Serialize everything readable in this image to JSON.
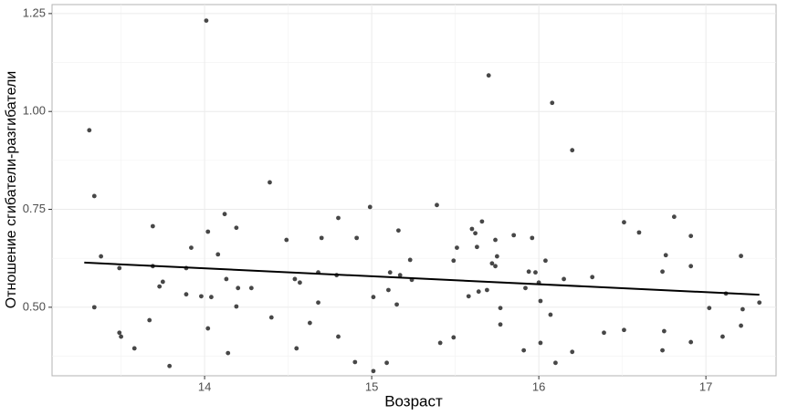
{
  "chart_data": {
    "type": "scatter",
    "xlabel": "Возраст",
    "ylabel": "Отношение сгибатели-разгибатели",
    "color": "#333333",
    "grid": true,
    "minor_grid": true,
    "xlim": [
      13.087,
      17.42
    ],
    "ylim": [
      0.325,
      1.273
    ],
    "xticks": [
      14,
      15,
      16,
      17
    ],
    "yticks": [
      {
        "value": 0.5,
        "label": "0.50"
      },
      {
        "value": 0.75,
        "label": "0.75"
      },
      {
        "value": 1.0,
        "label": "1.00"
      },
      {
        "value": 1.25,
        "label": "1.25"
      }
    ],
    "x": [
      13.31,
      13.34,
      13.34,
      13.38,
      13.49,
      13.49,
      13.5,
      13.58,
      13.67,
      13.69,
      13.69,
      13.73,
      13.75,
      13.79,
      13.89,
      13.89,
      13.92,
      13.98,
      14.01,
      14.02,
      14.02,
      14.04,
      14.08,
      14.12,
      14.13,
      14.14,
      14.19,
      14.19,
      14.2,
      14.28,
      14.39,
      14.4,
      14.49,
      14.54,
      14.55,
      14.57,
      14.63,
      14.68,
      14.68,
      14.7,
      14.79,
      14.8,
      14.8,
      14.9,
      14.91,
      14.99,
      15.01,
      15.01,
      15.09,
      15.1,
      15.11,
      15.15,
      15.16,
      15.17,
      15.23,
      15.24,
      15.39,
      15.41,
      15.49,
      15.49,
      15.51,
      15.58,
      15.6,
      15.62,
      15.63,
      15.64,
      15.66,
      15.69,
      15.7,
      15.72,
      15.74,
      15.74,
      15.75,
      15.77,
      15.77,
      15.85,
      15.91,
      15.92,
      15.94,
      15.96,
      15.98,
      16.0,
      16.01,
      16.01,
      16.04,
      16.07,
      16.08,
      16.1,
      16.15,
      16.2,
      16.2,
      16.32,
      16.39,
      16.51,
      16.51,
      16.6,
      16.74,
      16.74,
      16.75,
      16.76,
      16.81,
      16.91,
      16.91,
      16.91,
      17.02,
      17.1,
      17.12,
      17.21,
      17.21,
      17.22,
      17.32
    ],
    "y": [
      0.952,
      0.784,
      0.5,
      0.63,
      0.6,
      0.435,
      0.425,
      0.395,
      0.467,
      0.707,
      0.605,
      0.553,
      0.565,
      0.35,
      0.533,
      0.6,
      0.652,
      0.528,
      1.232,
      0.693,
      0.446,
      0.526,
      0.635,
      0.738,
      0.572,
      0.383,
      0.703,
      0.502,
      0.549,
      0.549,
      0.819,
      0.474,
      0.672,
      0.572,
      0.395,
      0.563,
      0.46,
      0.589,
      0.512,
      0.677,
      0.582,
      0.728,
      0.425,
      0.36,
      0.677,
      0.756,
      0.337,
      0.526,
      0.358,
      0.544,
      0.589,
      0.507,
      0.696,
      0.582,
      0.621,
      0.57,
      0.761,
      0.409,
      0.423,
      0.619,
      0.652,
      0.528,
      0.7,
      0.689,
      0.654,
      0.54,
      0.719,
      0.544,
      1.092,
      0.612,
      0.605,
      0.672,
      0.63,
      0.498,
      0.456,
      0.684,
      0.39,
      0.549,
      0.591,
      0.677,
      0.589,
      0.563,
      0.516,
      0.409,
      0.619,
      0.481,
      1.022,
      0.358,
      0.572,
      0.901,
      0.386,
      0.577,
      0.435,
      0.717,
      0.442,
      0.691,
      0.39,
      0.591,
      0.439,
      0.633,
      0.731,
      0.682,
      0.605,
      0.411,
      0.498,
      0.425,
      0.535,
      0.631,
      0.453,
      0.495,
      0.512
    ],
    "trend": {
      "color": "#000000",
      "x": [
        13.28,
        17.32
      ],
      "y": [
        0.614,
        0.532
      ]
    }
  }
}
